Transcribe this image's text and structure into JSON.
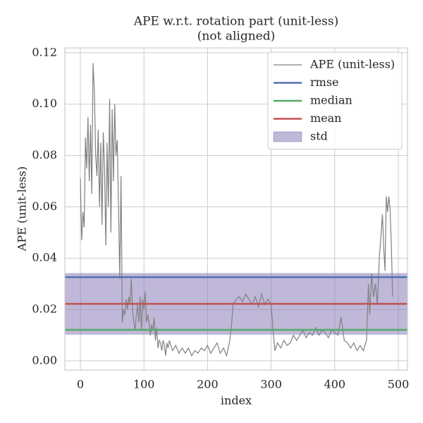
{
  "chart_data": {
    "type": "line",
    "title": "APE w.r.t. rotation part (unit-less)",
    "subtitle": "(not aligned)",
    "xlabel": "index",
    "ylabel": "APE (unit-less)",
    "xlim": [
      -24.4,
      514.4
    ],
    "ylim": [
      -0.0036,
      0.1219
    ],
    "xticks": [
      0,
      100,
      200,
      300,
      400,
      500
    ],
    "yticks": [
      {
        "value": 0,
        "label": "0.00"
      },
      0.02,
      0.04,
      0.06,
      0.08,
      {
        "value": 0.1,
        "label": "0.10"
      },
      0.12
    ],
    "grid": true,
    "legend": "upper right",
    "series": [
      {
        "name": "APE (unit-less)",
        "color": "#808080",
        "x": [
          0,
          2,
          4,
          6,
          8,
          10,
          12,
          14,
          16,
          18,
          20,
          22,
          24,
          26,
          28,
          30,
          32,
          34,
          36,
          38,
          40,
          42,
          44,
          46,
          48,
          50,
          52,
          54,
          56,
          58,
          60,
          62,
          64,
          66,
          68,
          70,
          72,
          74,
          76,
          78,
          80,
          82,
          84,
          86,
          88,
          90,
          92,
          94,
          96,
          98,
          100,
          102,
          104,
          106,
          108,
          110,
          112,
          114,
          116,
          118,
          120,
          122,
          124,
          126,
          128,
          130,
          132,
          134,
          136,
          138,
          140,
          145,
          150,
          155,
          160,
          165,
          170,
          175,
          180,
          185,
          190,
          195,
          200,
          205,
          210,
          215,
          220,
          225,
          230,
          235,
          238,
          240,
          245,
          250,
          255,
          260,
          265,
          270,
          275,
          280,
          285,
          290,
          295,
          300,
          303,
          306,
          310,
          315,
          320,
          325,
          330,
          335,
          340,
          345,
          350,
          355,
          360,
          365,
          370,
          375,
          380,
          385,
          390,
          395,
          400,
          405,
          410,
          415,
          420,
          425,
          430,
          435,
          440,
          445,
          450,
          453,
          455,
          458,
          461,
          464,
          467,
          470,
          473,
          475,
          477,
          479,
          481,
          483,
          485,
          487,
          489,
          491
        ],
        "values": [
          0.071,
          0.047,
          0.058,
          0.052,
          0.087,
          0.075,
          0.095,
          0.07,
          0.092,
          0.065,
          0.116,
          0.105,
          0.08,
          0.072,
          0.09,
          0.06,
          0.085,
          0.053,
          0.089,
          0.075,
          0.045,
          0.085,
          0.06,
          0.102,
          0.05,
          0.098,
          0.07,
          0.1,
          0.08,
          0.086,
          0.06,
          0.032,
          0.072,
          0.015,
          0.02,
          0.018,
          0.024,
          0.02,
          0.025,
          0.022,
          0.032,
          0.02,
          0.015,
          0.012,
          0.018,
          0.022,
          0.015,
          0.025,
          0.012,
          0.024,
          0.02,
          0.027,
          0.015,
          0.018,
          0.015,
          0.01,
          0.014,
          0.012,
          0.017,
          0.008,
          0.013,
          0.005,
          0.008,
          0.007,
          0.004,
          0.008,
          0.006,
          0.002,
          0.007,
          0.005,
          0.008,
          0.004,
          0.006,
          0.003,
          0.005,
          0.003,
          0.005,
          0.002,
          0.004,
          0.003,
          0.005,
          0.004,
          0.006,
          0.003,
          0.005,
          0.007,
          0.003,
          0.005,
          0.002,
          0.008,
          0.015,
          0.022,
          0.024,
          0.025,
          0.023,
          0.026,
          0.024,
          0.022,
          0.025,
          0.021,
          0.026,
          0.022,
          0.024,
          0.022,
          0.012,
          0.004,
          0.007,
          0.005,
          0.008,
          0.006,
          0.007,
          0.01,
          0.008,
          0.01,
          0.012,
          0.009,
          0.011,
          0.01,
          0.013,
          0.01,
          0.012,
          0.011,
          0.009,
          0.012,
          0.011,
          0.01,
          0.017,
          0.008,
          0.007,
          0.005,
          0.007,
          0.004,
          0.006,
          0.004,
          0.008,
          0.03,
          0.018,
          0.034,
          0.025,
          0.03,
          0.022,
          0.04,
          0.05,
          0.057,
          0.044,
          0.035,
          0.064,
          0.058,
          0.064,
          0.059,
          0.045,
          0.025
        ]
      }
    ],
    "stats": [
      {
        "name": "rmse",
        "color": "#4c72b0",
        "value": 0.0326
      },
      {
        "name": "median",
        "color": "#55a868",
        "value": 0.0121
      },
      {
        "name": "mean",
        "color": "#c44e52",
        "value": 0.0222
      },
      {
        "name": "std",
        "color": "#8172b2",
        "value": 0.012
      }
    ]
  }
}
